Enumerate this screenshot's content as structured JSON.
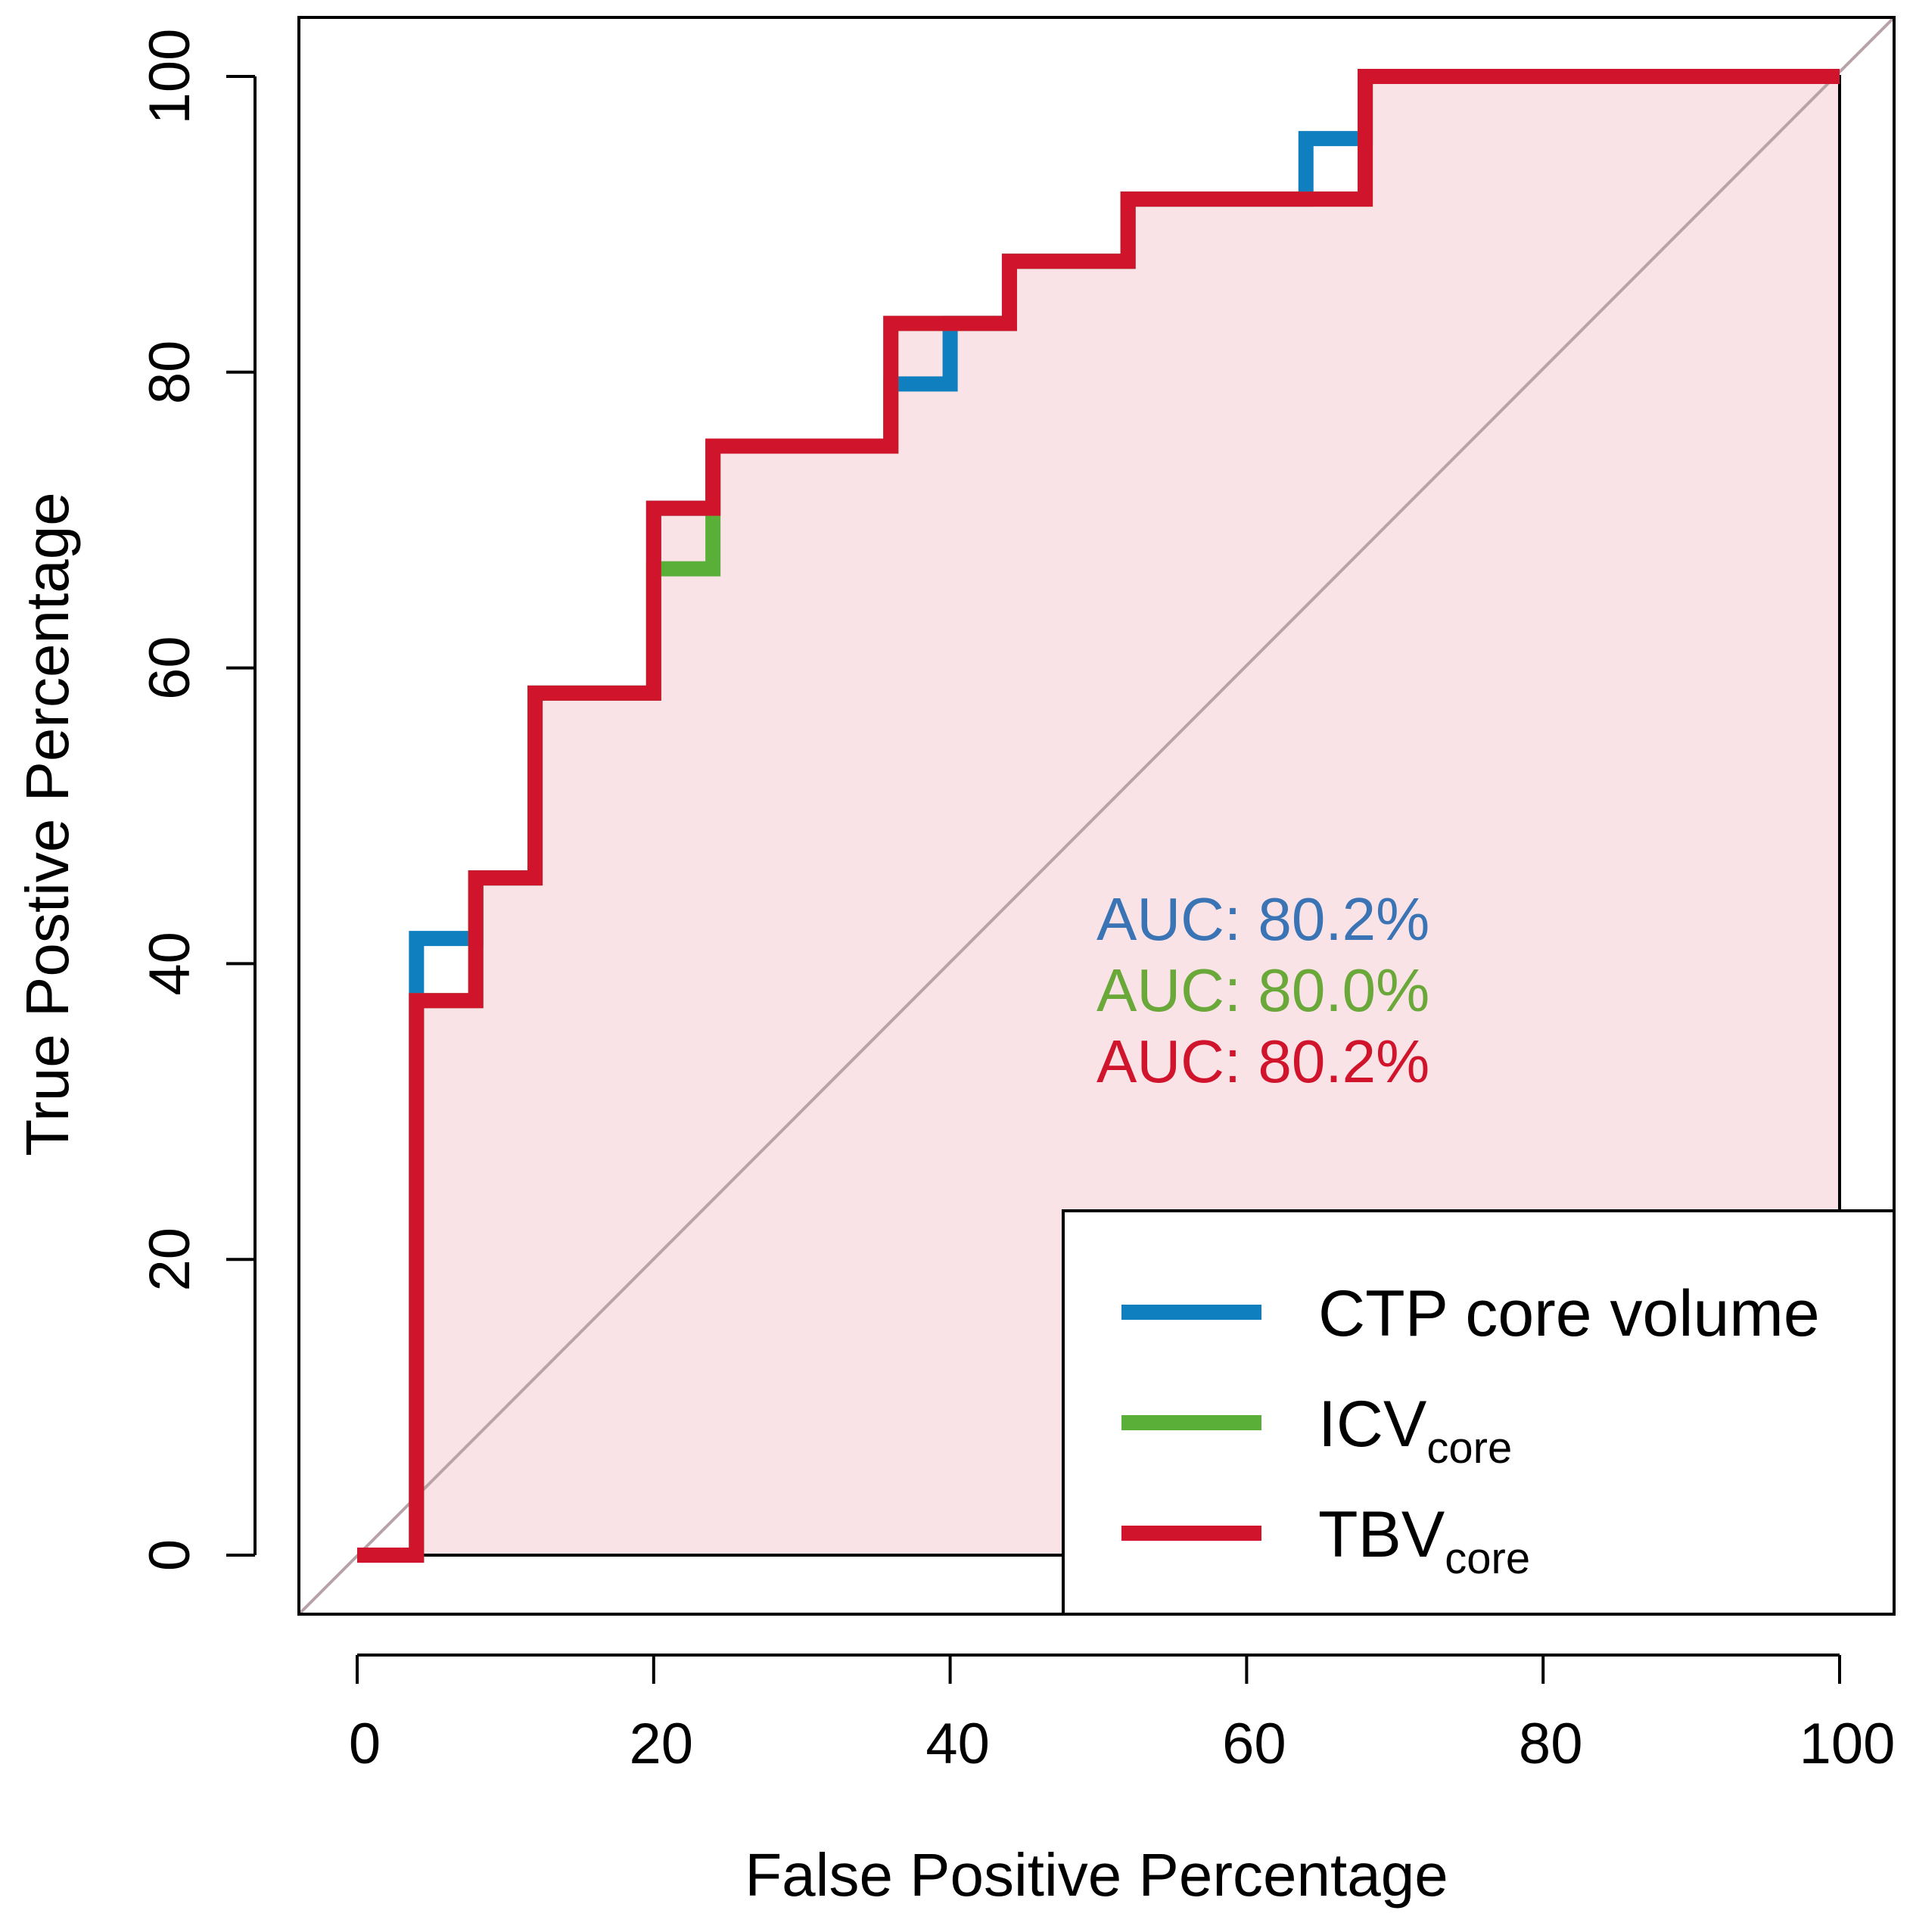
{
  "chart_data": {
    "type": "line",
    "xlabel": "False Positive Percentage",
    "ylabel": "True Postive Percentage",
    "xlim": [
      0,
      100
    ],
    "ylim": [
      0,
      100
    ],
    "x_ticks": [
      "0",
      "20",
      "40",
      "60",
      "80",
      "100"
    ],
    "y_ticks": [
      "0",
      "20",
      "40",
      "60",
      "80",
      "100"
    ],
    "reference_line": "diagonal",
    "shaded_area_color": "#f9e3e6",
    "series": [
      {
        "name": "CTP core volume",
        "label_main": "CTP core volume",
        "label_sub": "",
        "color": "#0f7fc0",
        "auc_text": "AUC: 80.2%",
        "auc_color": "#3a74b5",
        "points": [
          [
            0,
            0
          ],
          [
            4,
            0
          ],
          [
            4,
            41.7
          ],
          [
            8,
            41.7
          ],
          [
            8,
            45.8
          ],
          [
            12,
            45.8
          ],
          [
            12,
            58.3
          ],
          [
            20,
            58.3
          ],
          [
            20,
            70.8
          ],
          [
            24,
            70.8
          ],
          [
            24,
            75
          ],
          [
            36,
            75
          ],
          [
            36,
            79.2
          ],
          [
            40,
            79.2
          ],
          [
            40,
            83.3
          ],
          [
            44,
            83.3
          ],
          [
            44,
            87.5
          ],
          [
            52,
            87.5
          ],
          [
            52,
            91.7
          ],
          [
            64,
            91.7
          ],
          [
            64,
            95.8
          ],
          [
            68,
            95.8
          ],
          [
            68,
            100
          ],
          [
            100,
            100
          ]
        ]
      },
      {
        "name": "ICVcore",
        "label_main": "ICV",
        "label_sub": "core",
        "color": "#5aaf38",
        "auc_text": "AUC: 80.0%",
        "auc_color": "#6aa83a",
        "points": [
          [
            0,
            0
          ],
          [
            4,
            0
          ],
          [
            4,
            37.5
          ],
          [
            8,
            37.5
          ],
          [
            8,
            45.8
          ],
          [
            12,
            45.8
          ],
          [
            12,
            58.3
          ],
          [
            20,
            58.3
          ],
          [
            20,
            66.7
          ],
          [
            24,
            66.7
          ],
          [
            24,
            75
          ],
          [
            36,
            75
          ],
          [
            36,
            83.3
          ],
          [
            44,
            83.3
          ],
          [
            44,
            87.5
          ],
          [
            52,
            87.5
          ],
          [
            52,
            91.7
          ],
          [
            68,
            91.7
          ],
          [
            68,
            100
          ],
          [
            100,
            100
          ]
        ]
      },
      {
        "name": "TBVcore",
        "label_main": "TBV",
        "label_sub": "core",
        "color": "#d0142c",
        "auc_text": "AUC: 80.2%",
        "auc_color": "#d0142c",
        "points": [
          [
            0,
            0
          ],
          [
            4,
            0
          ],
          [
            4,
            37.5
          ],
          [
            8,
            37.5
          ],
          [
            8,
            45.8
          ],
          [
            12,
            45.8
          ],
          [
            12,
            58.3
          ],
          [
            20,
            58.3
          ],
          [
            20,
            70.8
          ],
          [
            24,
            70.8
          ],
          [
            24,
            75
          ],
          [
            36,
            75
          ],
          [
            36,
            83.3
          ],
          [
            44,
            83.3
          ],
          [
            44,
            87.5
          ],
          [
            52,
            87.5
          ],
          [
            52,
            91.7
          ],
          [
            68,
            91.7
          ],
          [
            68,
            100
          ],
          [
            100,
            100
          ]
        ]
      }
    ],
    "legend_position": "bottom-right"
  }
}
